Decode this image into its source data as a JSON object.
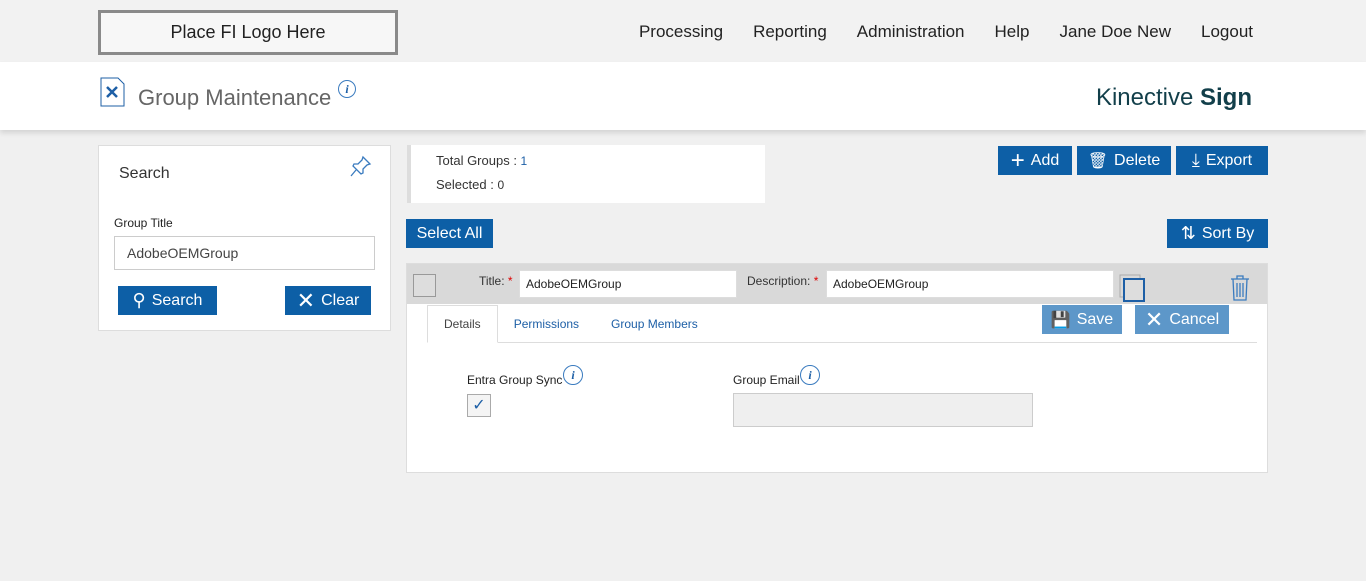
{
  "logo": "Place FI Logo Here",
  "nav": [
    "Processing",
    "Reporting",
    "Administration",
    "Help",
    "Jane Doe New",
    "Logout"
  ],
  "page": {
    "title": "Group Maintenance",
    "brand_light": "Kinective ",
    "brand_bold": "Sign"
  },
  "search": {
    "heading": "Search",
    "group_title_label": "Group Title",
    "group_title_value": "AdobeOEMGroup",
    "search_label": "Search",
    "clear_label": "Clear"
  },
  "summary": {
    "total_label": "Total Groups : ",
    "total": "1",
    "selected_label": "Selected : ",
    "selected": "0"
  },
  "toolbar": {
    "add": "Add",
    "delete": "Delete",
    "export": "Export",
    "select_all": "Select All",
    "sort_by": "Sort By"
  },
  "group": {
    "title_label": "Title:",
    "title_value": "AdobeOEMGroup",
    "description_label": "Description:",
    "description_value": "AdobeOEMGroup",
    "required": "*",
    "tabs": [
      "Details",
      "Permissions",
      "Group Members"
    ],
    "save": "Save",
    "cancel": "Cancel",
    "entra_label": "Entra Group Sync",
    "entra_checked": true,
    "email_label": "Group Email",
    "email_value": ""
  },
  "colors": {
    "accent": "#0d5fa6",
    "accent_disabled": "#5d97c9"
  }
}
